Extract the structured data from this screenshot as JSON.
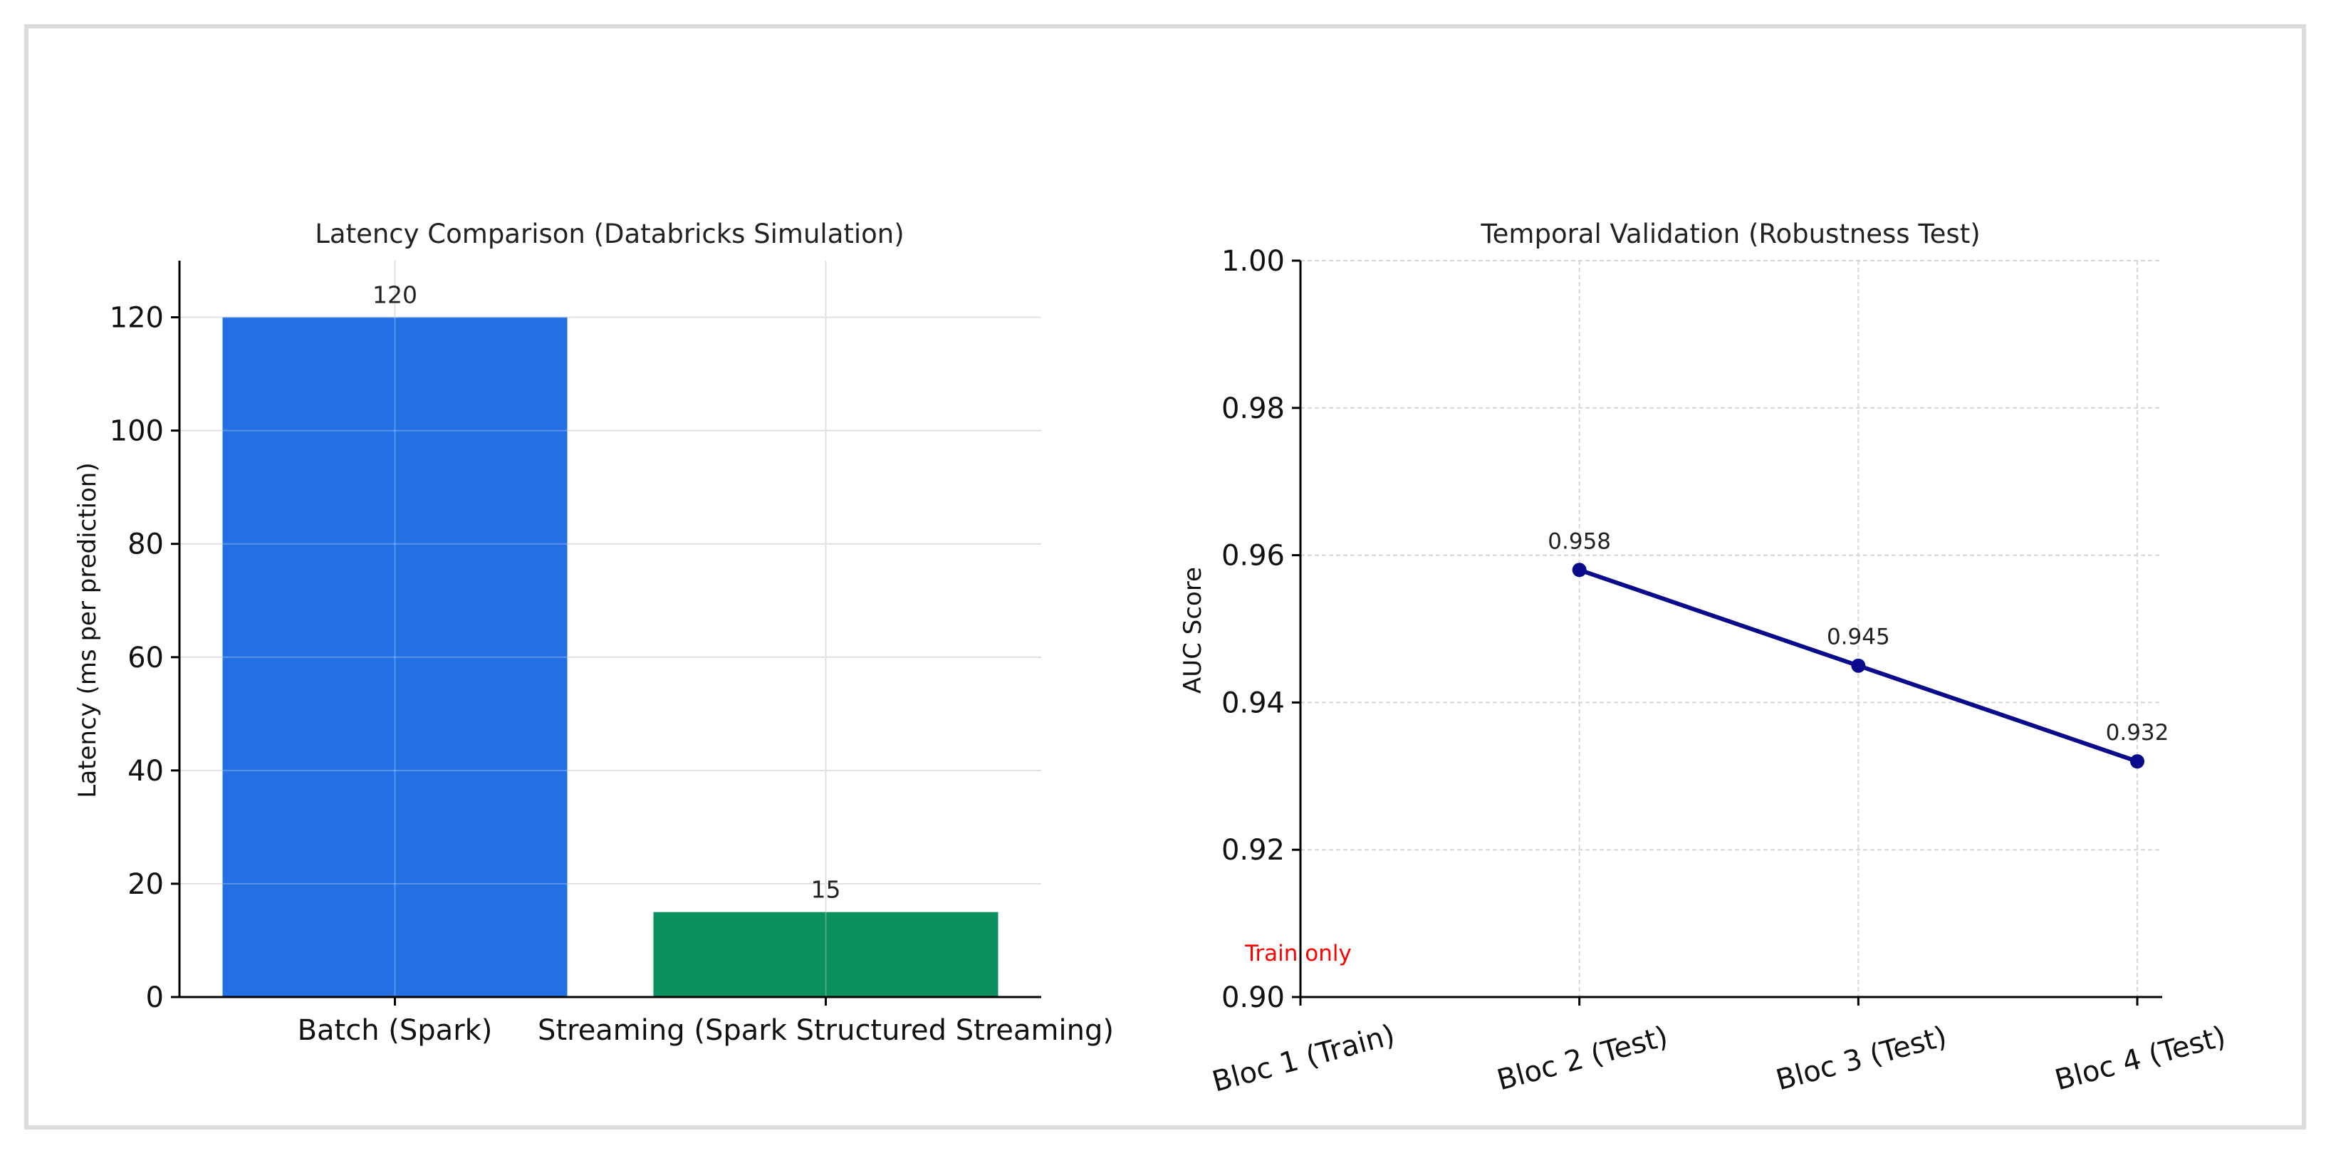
{
  "chart_data": [
    {
      "type": "bar",
      "title": "Latency Comparison (Databricks Simulation)",
      "xlabel": "",
      "ylabel": "Latency (ms per prediction)",
      "categories": [
        "Batch (Spark)",
        "Streaming (Spark Structured Streaming)"
      ],
      "values": [
        120,
        15
      ],
      "value_labels": [
        "120",
        "15"
      ],
      "colors": [
        "#1668e3",
        "#008a57"
      ],
      "ylim": [
        0,
        130
      ],
      "yticks": [
        0,
        20,
        40,
        60,
        80,
        100,
        120
      ],
      "grid": true
    },
    {
      "type": "line",
      "title": "Temporal Validation (Robustness Test)",
      "xlabel": "",
      "ylabel": "AUC Score",
      "categories": [
        "Bloc 1 (Train)",
        "Bloc 2 (Test)",
        "Bloc 3 (Test)",
        "Bloc 4 (Test)"
      ],
      "series": [
        {
          "values": [
            null,
            0.958,
            0.945,
            0.932
          ],
          "point_labels": [
            null,
            "0.958",
            "0.945",
            "0.932"
          ],
          "color": "#0a0a8c"
        }
      ],
      "annotation": {
        "text": "Train only",
        "color": "#ff0000"
      },
      "ylim": [
        0.9,
        1.0
      ],
      "yticks": [
        "0.90",
        "0.92",
        "0.94",
        "0.96",
        "0.98",
        "1.00"
      ],
      "grid": true
    }
  ]
}
